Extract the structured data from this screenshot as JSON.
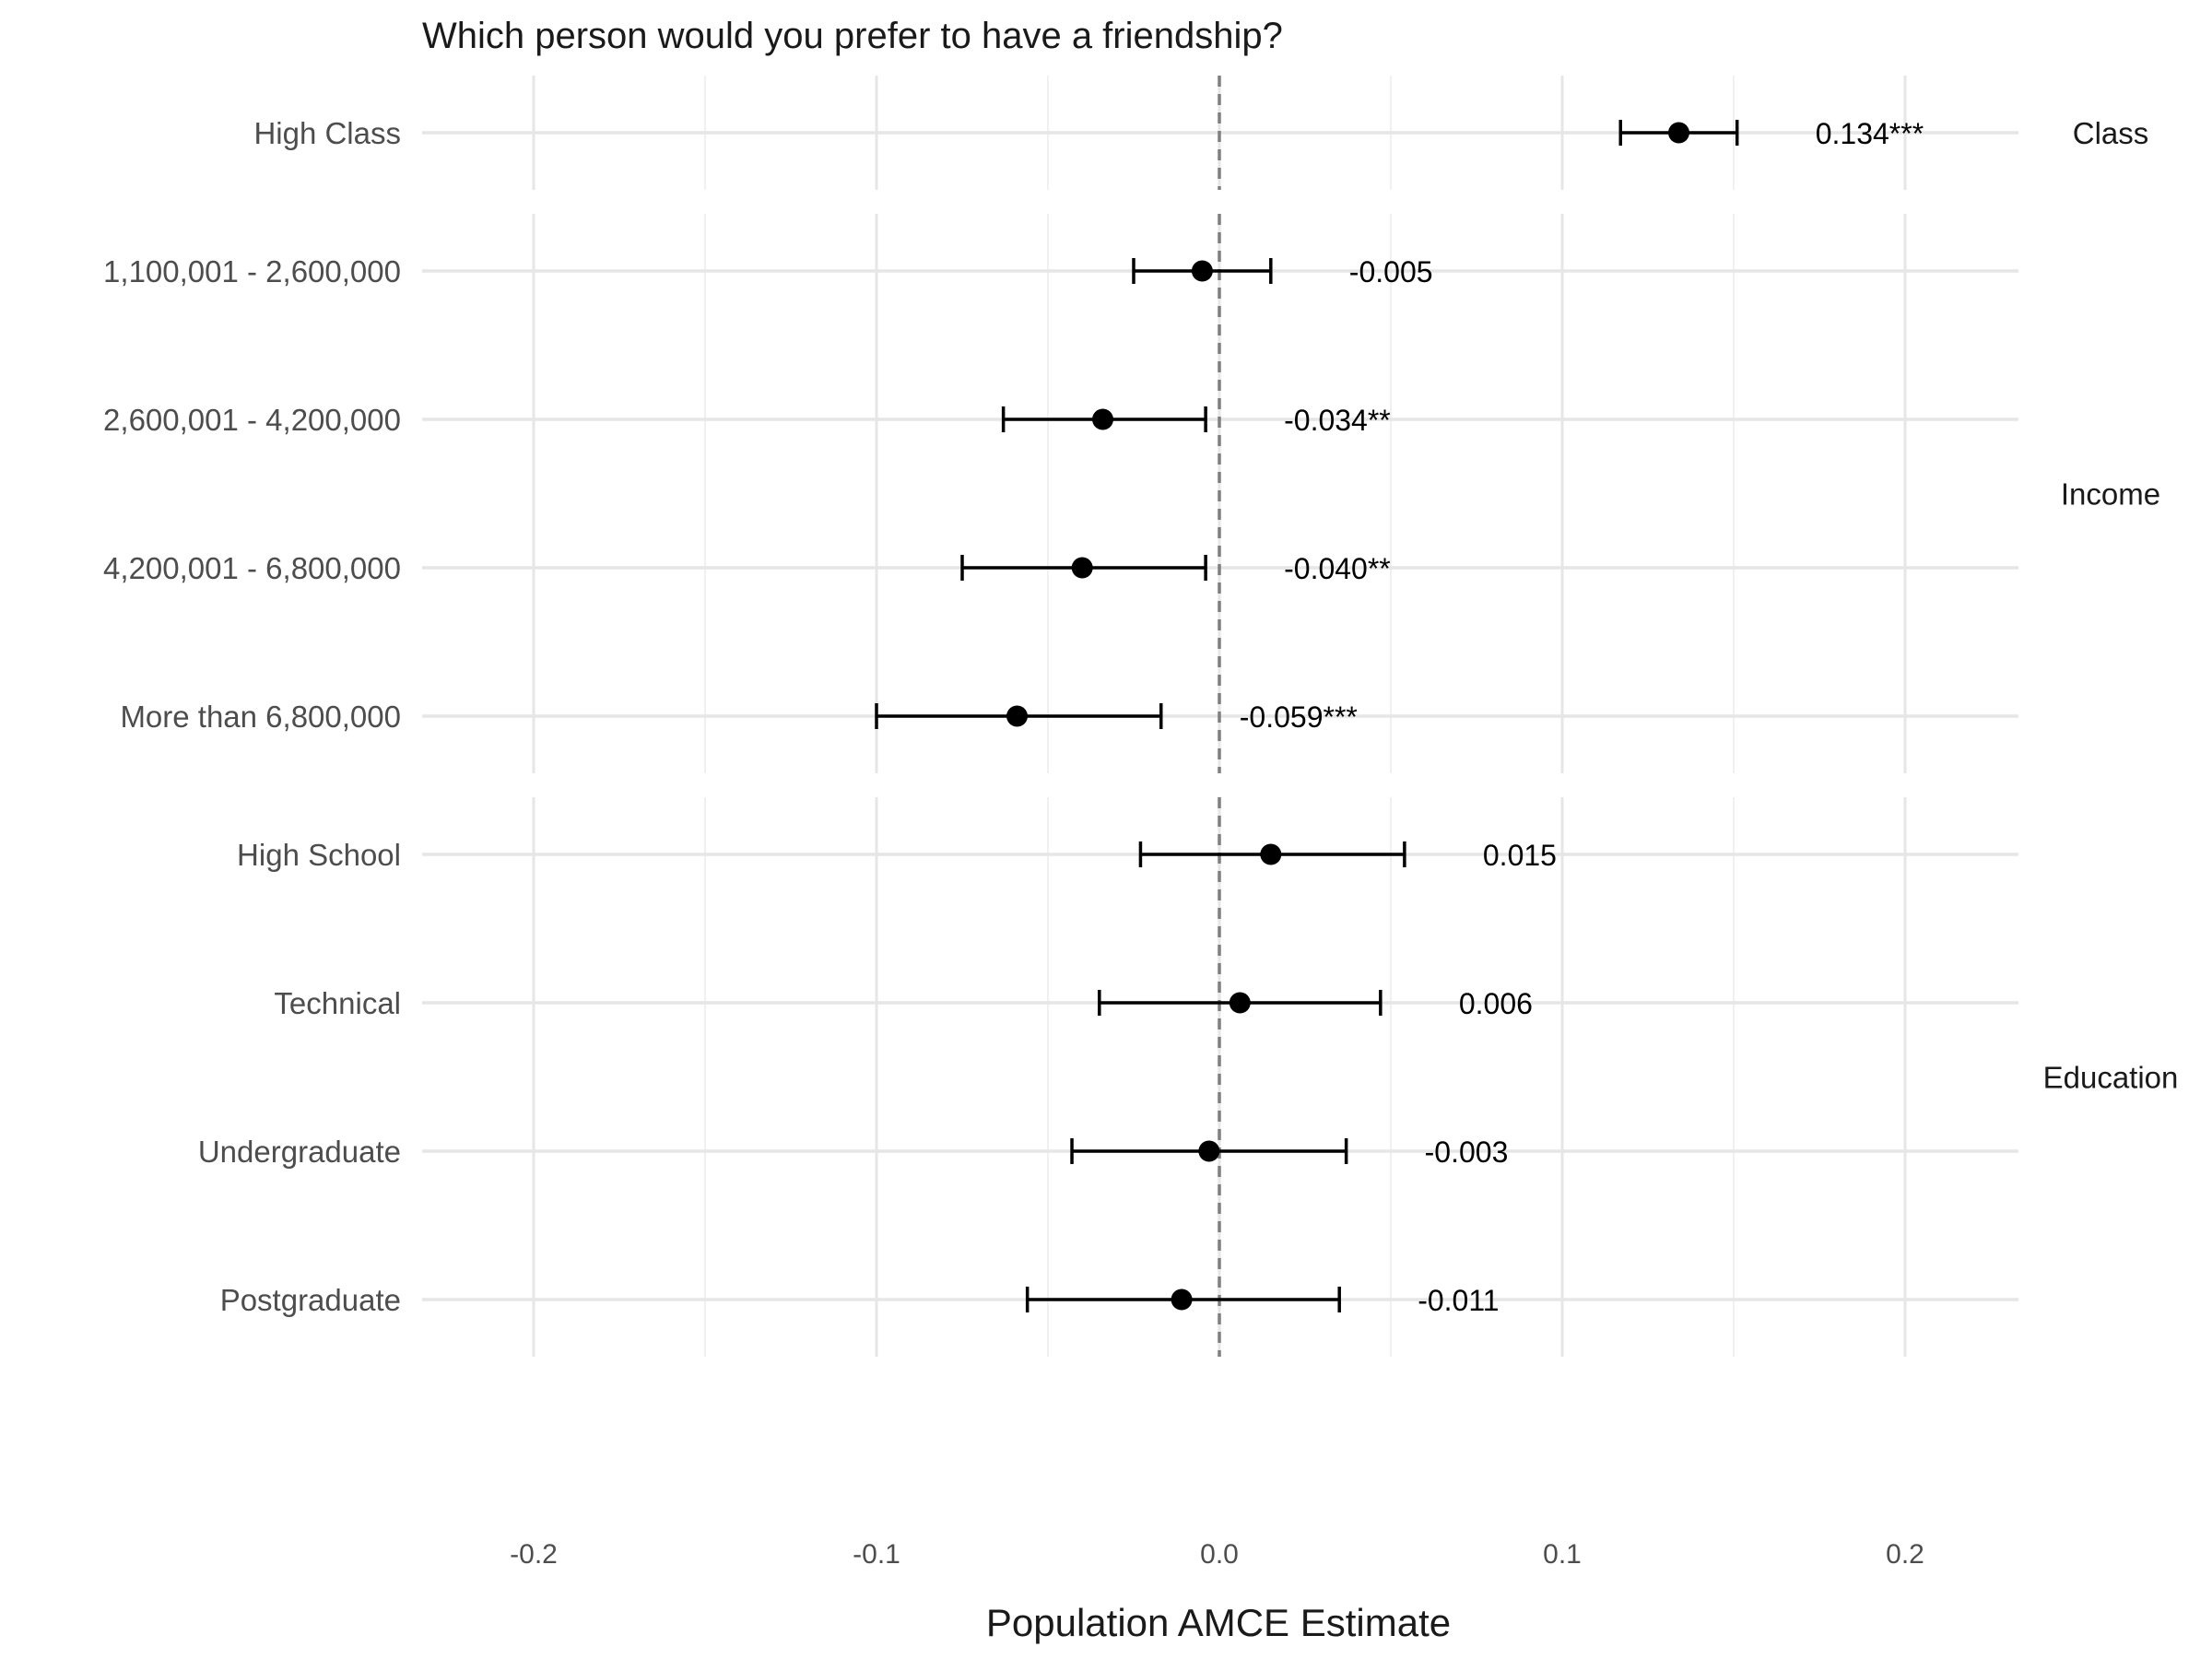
{
  "chart_data": {
    "type": "scatter",
    "title": "Which person would you prefer to have a friendship?",
    "xlabel": "Population AMCE Estimate",
    "ylabel": "",
    "xlim": [
      -0.24,
      0.23
    ],
    "xticks": [
      -0.2,
      -0.1,
      0.0,
      0.1,
      0.2
    ],
    "xtick_labels": [
      "-0.2",
      "-0.1",
      "0.0",
      "0.1",
      "0.2"
    ],
    "reference_line": 0,
    "grid": true,
    "facets": [
      {
        "name": "Class",
        "points": [
          {
            "label": "High Class",
            "estimate": 0.134,
            "lower": 0.117,
            "upper": 0.151,
            "value_label": "0.134***"
          }
        ]
      },
      {
        "name": "Income",
        "points": [
          {
            "label": "1,100,001 - 2,600,000",
            "estimate": -0.005,
            "lower": -0.025,
            "upper": 0.015,
            "value_label": "-0.005"
          },
          {
            "label": "2,600,001 - 4,200,000",
            "estimate": -0.034,
            "lower": -0.063,
            "upper": -0.004,
            "value_label": "-0.034**"
          },
          {
            "label": "4,200,001 - 6,800,000",
            "estimate": -0.04,
            "lower": -0.075,
            "upper": -0.004,
            "value_label": "-0.040**"
          },
          {
            "label": "More than 6,800,000",
            "estimate": -0.059,
            "lower": -0.1,
            "upper": -0.017,
            "value_label": "-0.059***"
          }
        ]
      },
      {
        "name": "Education",
        "points": [
          {
            "label": "High School",
            "estimate": 0.015,
            "lower": -0.023,
            "upper": 0.054,
            "value_label": "0.015"
          },
          {
            "label": "Technical",
            "estimate": 0.006,
            "lower": -0.035,
            "upper": 0.047,
            "value_label": "0.006"
          },
          {
            "label": "Undergraduate",
            "estimate": -0.003,
            "lower": -0.043,
            "upper": 0.037,
            "value_label": "-0.003"
          },
          {
            "label": "Postgraduate",
            "estimate": -0.011,
            "lower": -0.056,
            "upper": 0.035,
            "value_label": "-0.011"
          }
        ]
      }
    ]
  }
}
